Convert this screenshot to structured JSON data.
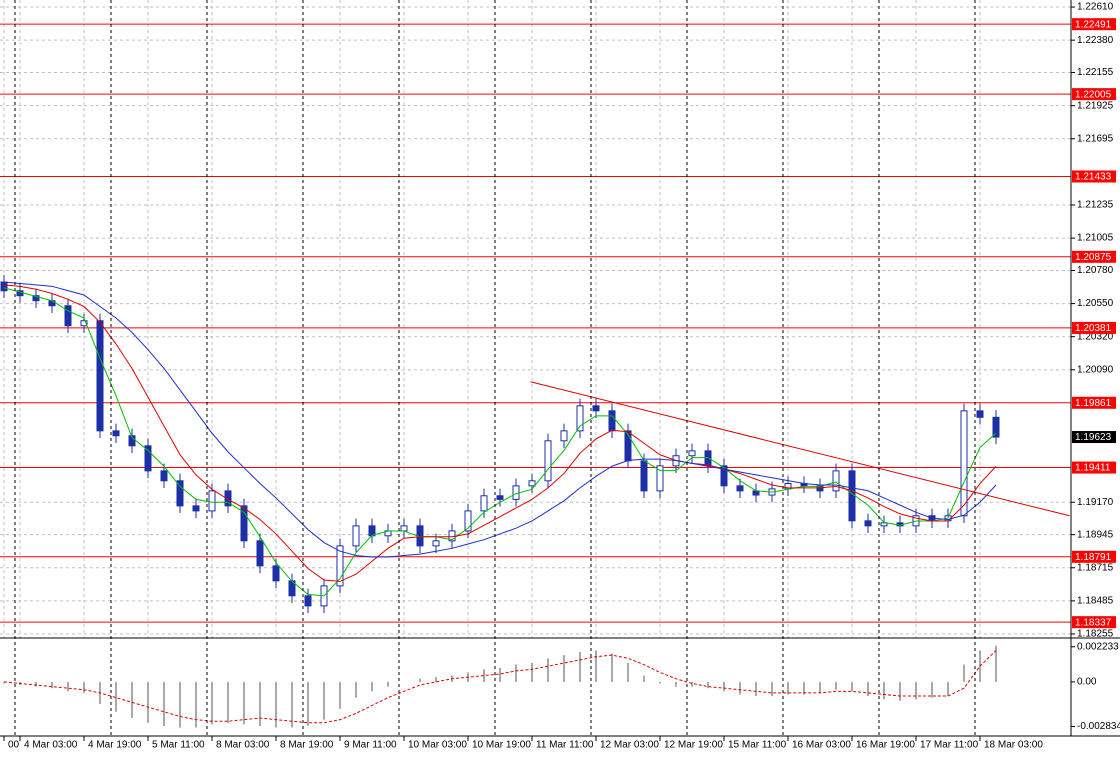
{
  "chart_data": [
    {
      "type": "candlestick",
      "categories": [
        "00",
        "4 Mar 03:00",
        null,
        null,
        null,
        "4 Mar 19:00",
        null,
        null,
        null,
        "5 Mar 11:00",
        null,
        null,
        null,
        "8 Mar 03:00",
        null,
        null,
        null,
        "8 Mar 19:00",
        null,
        null,
        null,
        "9 Mar 11:00",
        null,
        null,
        null,
        "10 Mar 03:00",
        null,
        null,
        null,
        "10 Mar 19:00",
        null,
        null,
        null,
        "11 Mar 11:00",
        null,
        null,
        null,
        "12 Mar 03:00",
        null,
        null,
        null,
        "12 Mar 19:00",
        null,
        null,
        null,
        "15 Mar 11:00",
        null,
        null,
        null,
        "16 Mar 03:00",
        null,
        null,
        null,
        "16 Mar 19:00",
        null,
        null,
        null,
        "17 Mar 11:00",
        null,
        null,
        null,
        "18 Mar 03:00",
        null
      ],
      "open": [
        1.207,
        1.20639,
        1.20605,
        1.2057,
        1.20535,
        1.20396,
        1.20431,
        1.19666,
        1.19632,
        1.19562,
        1.19388,
        1.19319,
        1.19145,
        1.1911,
        1.19249,
        1.19145,
        1.18902,
        1.18728,
        1.18624,
        1.1852,
        1.1845,
        1.18589,
        1.18867,
        1.19006,
        1.18937,
        1.18971,
        1.19006,
        1.18867,
        1.18902,
        1.18971,
        1.1911,
        1.19215,
        1.1919,
        1.19284,
        1.19319,
        1.19597,
        1.19666,
        1.1984,
        1.19805,
        1.19666,
        1.19458,
        1.19249,
        1.19423,
        1.19493,
        1.19527,
        1.19423,
        1.19284,
        1.19249,
        1.1922,
        1.19263,
        1.193,
        1.19284,
        1.19249,
        1.19388,
        1.19041,
        1.19006,
        1.19027,
        1.19006,
        1.19076,
        1.19041,
        1.19076,
        1.19805,
        1.1976
      ],
      "high": [
        1.2075,
        1.20689,
        1.20655,
        1.2062,
        1.20585,
        1.20481,
        1.20481,
        1.19716,
        1.19682,
        1.19612,
        1.19438,
        1.19369,
        1.19195,
        1.19299,
        1.19299,
        1.19195,
        1.18952,
        1.18778,
        1.18674,
        1.1857,
        1.18639,
        1.18917,
        1.19056,
        1.19056,
        1.19021,
        1.19056,
        1.19056,
        1.18952,
        1.19021,
        1.1916,
        1.19265,
        1.19265,
        1.19334,
        1.19369,
        1.19647,
        1.19716,
        1.1989,
        1.1989,
        1.19855,
        1.19716,
        1.19508,
        1.19473,
        1.19543,
        1.19577,
        1.19577,
        1.19473,
        1.19334,
        1.19299,
        1.19313,
        1.1935,
        1.1935,
        1.19334,
        1.19438,
        1.19438,
        1.19091,
        1.19077,
        1.19077,
        1.19126,
        1.19126,
        1.19126,
        1.19855,
        1.19855,
        1.1981
      ],
      "low": [
        1.20589,
        1.20555,
        1.2052,
        1.20485,
        1.20346,
        1.20346,
        1.19616,
        1.19582,
        1.19512,
        1.19338,
        1.19269,
        1.19095,
        1.1906,
        1.1906,
        1.19095,
        1.18852,
        1.18678,
        1.18574,
        1.1847,
        1.184,
        1.184,
        1.18539,
        1.18817,
        1.18887,
        1.18887,
        1.18921,
        1.18817,
        1.18817,
        1.18852,
        1.18921,
        1.1906,
        1.1914,
        1.1914,
        1.19234,
        1.19269,
        1.19547,
        1.19616,
        1.19755,
        1.19616,
        1.19408,
        1.19199,
        1.19199,
        1.19373,
        1.19443,
        1.19373,
        1.19234,
        1.19199,
        1.1917,
        1.1917,
        1.19213,
        1.19234,
        1.19199,
        1.19199,
        1.18991,
        1.18956,
        1.18956,
        1.18956,
        1.18956,
        1.18991,
        1.18991,
        1.19026,
        1.1971,
        1.19573
      ],
      "close": [
        1.20639,
        1.20605,
        1.2057,
        1.20535,
        1.20396,
        1.20431,
        1.19666,
        1.19632,
        1.19562,
        1.19388,
        1.19319,
        1.19145,
        1.1911,
        1.19249,
        1.19145,
        1.18902,
        1.18728,
        1.18624,
        1.1852,
        1.1845,
        1.18589,
        1.18867,
        1.19006,
        1.18937,
        1.18971,
        1.19006,
        1.18867,
        1.18902,
        1.18971,
        1.1911,
        1.19215,
        1.1919,
        1.19284,
        1.19319,
        1.19597,
        1.19666,
        1.1984,
        1.19805,
        1.19666,
        1.19458,
        1.19249,
        1.19423,
        1.19493,
        1.19527,
        1.19423,
        1.19284,
        1.19249,
        1.1922,
        1.19263,
        1.193,
        1.19284,
        1.19249,
        1.19388,
        1.19041,
        1.19006,
        1.19027,
        1.19006,
        1.19076,
        1.19041,
        1.19076,
        1.19805,
        1.1976,
        1.19623
      ],
      "color": "#1c2fa8",
      "series": [
        {
          "color": "#00c000",
          "values": [
            1.2066,
            1.2063,
            1.206,
            1.2057,
            1.205,
            1.2045,
            1.2017,
            1.1991,
            1.1962,
            1.1953,
            1.1942,
            1.1928,
            1.1919,
            1.1917,
            1.1917,
            1.191,
            1.1893,
            1.1875,
            1.1862,
            1.1853,
            1.1852,
            1.1864,
            1.1882,
            1.1894,
            1.1897,
            1.1897,
            1.1893,
            1.1893,
            1.1891,
            1.1899,
            1.191,
            1.1917,
            1.1923,
            1.1926,
            1.194,
            1.1953,
            1.197,
            1.1977,
            1.1977,
            1.1964,
            1.1946,
            1.1939,
            1.1939,
            1.1948,
            1.1948,
            1.1941,
            1.1932,
            1.1925,
            1.1924,
            1.1926,
            1.1928,
            1.1928,
            1.1931,
            1.1923,
            1.1915,
            1.1903,
            1.1901,
            1.1904,
            1.1904,
            1.1906,
            1.1931,
            1.1955,
            1.1965
          ]
        },
        {
          "color": "#e00000",
          "values": [
            1.2068,
            1.2067,
            1.2065,
            1.2062,
            1.2058,
            1.2053,
            1.2042,
            1.2027,
            1.201,
            1.199,
            1.197,
            1.195,
            1.1936,
            1.1926,
            1.1919,
            1.1913,
            1.1905,
            1.1895,
            1.1883,
            1.1871,
            1.1863,
            1.1862,
            1.1867,
            1.1876,
            1.1885,
            1.1892,
            1.1893,
            1.1893,
            1.1893,
            1.1895,
            1.1901,
            1.1907,
            1.1913,
            1.1919,
            1.1927,
            1.1937,
            1.1951,
            1.1961,
            1.1967,
            1.1966,
            1.1958,
            1.195,
            1.1946,
            1.1944,
            1.1943,
            1.194,
            1.1937,
            1.1933,
            1.1929,
            1.1927,
            1.1927,
            1.1927,
            1.1928,
            1.1925,
            1.192,
            1.1914,
            1.1909,
            1.1906,
            1.1904,
            1.1904,
            1.1915,
            1.193,
            1.1942
          ]
        },
        {
          "color": "#1c2fd0",
          "values": [
            1.207,
            1.2069,
            1.2068,
            1.2067,
            1.2064,
            1.2061,
            1.2053,
            1.2045,
            1.2035,
            1.2023,
            1.201,
            1.1995,
            1.198,
            1.1965,
            1.1952,
            1.1941,
            1.193,
            1.192,
            1.1909,
            1.1898,
            1.1889,
            1.1883,
            1.188,
            1.1879,
            1.1879,
            1.188,
            1.1881,
            1.1883,
            1.1885,
            1.1888,
            1.1891,
            1.1895,
            1.1899,
            1.1904,
            1.1911,
            1.1918,
            1.1927,
            1.1935,
            1.1942,
            1.1946,
            1.1947,
            1.1947,
            1.1946,
            1.1944,
            1.1942,
            1.194,
            1.1938,
            1.1936,
            1.1934,
            1.1932,
            1.193,
            1.1929,
            1.1929,
            1.1927,
            1.1925,
            1.192,
            1.1915,
            1.191,
            1.1906,
            1.1905,
            1.1908,
            1.1917,
            1.1929
          ]
        }
      ],
      "trend_line": {
        "color": "#e00000",
        "x": [
          32.9,
          66.6
        ],
        "values": [
          1.20007,
          1.19076
        ]
      },
      "levels": {
        "color": "#ff0000",
        "values": [
          1.22491,
          1.22005,
          1.21433,
          1.20875,
          1.20381,
          1.19861,
          1.19411,
          1.18791,
          1.18337
        ]
      },
      "last_price": 1.19623,
      "ylim": [
        1.18227,
        1.22659
      ],
      "yticks": [
        {
          "value": 1.2261,
          "label": "1.22610"
        },
        {
          "value": 1.2238,
          "label": "1.22380"
        },
        1.22155,
        1.21925,
        1.21695,
        1.21235,
        1.21005,
        {
          "value": 1.2078,
          "label": "1.20780"
        },
        {
          "value": 1.2055,
          "label": "1.20550"
        },
        {
          "value": 1.2032,
          "label": "1.20320"
        },
        {
          "value": 1.2009,
          "label": "1.20090"
        },
        {
          "value": 1.1917,
          "label": "1.19170"
        },
        1.18945,
        1.18715,
        1.18485,
        1.18255
      ],
      "grid": true
    },
    {
      "type": "bar",
      "color": "#a8a8a8",
      "values": [
        -0.0001,
        -0.0002,
        -0.0003,
        -0.0004,
        -0.0006,
        -0.0007,
        -0.0014,
        -0.0019,
        -0.0023,
        -0.0026,
        -0.0028,
        -0.0029,
        -0.0029,
        -0.0027,
        -0.0026,
        -0.0027,
        -0.0028,
        -0.0029,
        -0.0029,
        -0.0028,
        -0.0024,
        -0.0017,
        -0.001,
        -0.0006,
        -0.0003,
        0.0,
        0.0002,
        0.0003,
        0.0004,
        0.0006,
        0.0008,
        0.0009,
        0.0011,
        0.0012,
        0.0015,
        0.0017,
        0.0019,
        0.002,
        0.0018,
        0.0012,
        0.0004,
        -0.0001,
        -0.0003,
        -0.0003,
        -0.0004,
        -0.0006,
        -0.0008,
        -0.0009,
        -0.0009,
        -0.0008,
        -0.0008,
        -0.0007,
        -0.0005,
        -0.0006,
        -0.0009,
        -0.0011,
        -0.0012,
        -0.0011,
        -0.001,
        -0.0009,
        0.0011,
        0.002,
        0.0023
      ],
      "series": [
        {
          "color": "#e00000",
          "style": "dashed",
          "values": [
            0.0,
            -0.0001,
            -0.0002,
            -0.0003,
            -0.0004,
            -0.0005,
            -0.0007,
            -0.001,
            -0.0013,
            -0.0016,
            -0.0019,
            -0.0022,
            -0.0024,
            -0.0025,
            -0.0025,
            -0.0024,
            -0.0023,
            -0.0024,
            -0.0025,
            -0.0026,
            -0.0026,
            -0.0024,
            -0.002,
            -0.0015,
            -0.001,
            -0.0006,
            -0.0002,
            0.0,
            0.0002,
            0.0003,
            0.0004,
            0.0005,
            0.0007,
            0.0008,
            0.001,
            0.0012,
            0.0014,
            0.0016,
            0.0017,
            0.0015,
            0.0011,
            0.0006,
            0.0002,
            -0.0001,
            -0.0003,
            -0.0004,
            -0.0005,
            -0.0006,
            -0.0007,
            -0.0007,
            -0.0007,
            -0.0007,
            -0.0006,
            -0.0006,
            -0.0007,
            -0.0008,
            -0.0009,
            -0.0009,
            -0.0009,
            -0.0009,
            -0.0004,
            0.001,
            0.002
          ]
        }
      ],
      "ylim": [
        -0.00344,
        0.00279
      ],
      "yticks": [
        0.002233,
        {
          "value": 0,
          "label": "0.00"
        },
        -0.002834
      ]
    }
  ]
}
